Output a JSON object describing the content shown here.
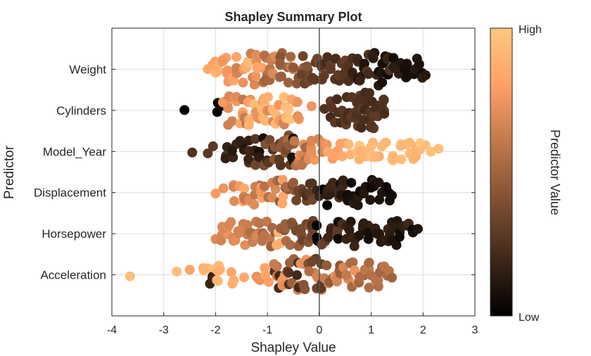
{
  "chart_data": {
    "type": "scatter",
    "title": "Shapley Summary Plot",
    "xlabel": "Shapley Value",
    "ylabel": "Predictor",
    "xlim": [
      -4,
      3
    ],
    "xticks": [
      -4,
      -3,
      -2,
      -1,
      0,
      1,
      2,
      3
    ],
    "grid": true,
    "zero_line": true,
    "colormap": "copper",
    "colorbar": {
      "label": "Predictor Value",
      "high_label": "High",
      "low_label": "Low",
      "position": "right"
    },
    "categories": [
      "Weight",
      "Cylinders",
      "Model_Year",
      "Displacement",
      "Horsepower",
      "Acceleration"
    ],
    "series": [
      {
        "predictor": "Weight",
        "points": [
          [
            -2.15,
            0.85
          ],
          [
            -2.05,
            0.8
          ],
          [
            -1.95,
            0.9
          ],
          [
            -1.85,
            0.75
          ],
          [
            -1.75,
            0.8
          ],
          [
            -1.65,
            0.85
          ],
          [
            -1.55,
            0.7
          ],
          [
            -1.45,
            0.75
          ],
          [
            -1.4,
            0.9
          ],
          [
            -1.3,
            0.65
          ],
          [
            -1.2,
            0.7
          ],
          [
            -1.15,
            0.8
          ],
          [
            -1.05,
            0.6
          ],
          [
            -1.0,
            0.55
          ],
          [
            -0.9,
            0.6
          ],
          [
            -0.85,
            0.7
          ],
          [
            -0.75,
            0.5
          ],
          [
            -0.7,
            0.45
          ],
          [
            -0.6,
            0.5
          ],
          [
            -0.55,
            0.6
          ],
          [
            -0.45,
            0.4
          ],
          [
            -0.35,
            0.45
          ],
          [
            -0.3,
            0.35
          ],
          [
            -0.2,
            0.4
          ],
          [
            -0.1,
            0.3
          ],
          [
            0.0,
            0.35
          ],
          [
            0.1,
            0.3
          ],
          [
            0.15,
            0.25
          ],
          [
            0.25,
            0.28
          ],
          [
            0.35,
            0.25
          ],
          [
            0.45,
            0.3
          ],
          [
            0.55,
            0.25
          ],
          [
            0.65,
            0.2
          ],
          [
            0.75,
            0.15
          ],
          [
            0.8,
            0.2
          ],
          [
            0.9,
            0.1
          ],
          [
            0.95,
            0.25
          ],
          [
            1.05,
            0.15
          ],
          [
            1.1,
            0.1
          ],
          [
            1.2,
            0.12
          ],
          [
            1.3,
            0.08
          ],
          [
            1.35,
            0.2
          ],
          [
            1.45,
            0.1
          ],
          [
            1.55,
            0.12
          ],
          [
            1.65,
            0.1
          ],
          [
            1.75,
            0.08
          ],
          [
            1.85,
            0.12
          ],
          [
            1.95,
            0.1
          ],
          [
            2.05,
            0.12
          ]
        ]
      },
      {
        "predictor": "Cylinders",
        "points": [
          [
            -2.6,
            0.0
          ],
          [
            -1.95,
            0.0
          ],
          [
            -1.85,
            0.02
          ],
          [
            -1.8,
            0.75
          ],
          [
            -1.7,
            0.7
          ],
          [
            -1.6,
            0.75
          ],
          [
            -1.5,
            0.8
          ],
          [
            -1.45,
            0.6
          ],
          [
            -1.35,
            0.75
          ],
          [
            -1.3,
            0.9
          ],
          [
            -1.2,
            0.7
          ],
          [
            -1.1,
            0.95
          ],
          [
            -1.05,
            0.8
          ],
          [
            -1.0,
            0.9
          ],
          [
            -0.95,
            0.7
          ],
          [
            -0.85,
            0.95
          ],
          [
            -0.8,
            0.75
          ],
          [
            -0.7,
            0.9
          ],
          [
            -0.65,
            0.7
          ],
          [
            -0.6,
            0.95
          ],
          [
            -0.5,
            0.8
          ],
          [
            -0.4,
            0.75
          ],
          [
            -0.15,
            0.75
          ],
          [
            0.1,
            0.25
          ],
          [
            0.25,
            0.25
          ],
          [
            0.35,
            0.25
          ],
          [
            0.45,
            0.25
          ],
          [
            0.5,
            0.25
          ],
          [
            0.6,
            0.25
          ],
          [
            0.65,
            0.25
          ],
          [
            0.7,
            0.25
          ],
          [
            0.75,
            0.25
          ],
          [
            0.8,
            0.25
          ],
          [
            0.85,
            0.25
          ],
          [
            0.9,
            0.25
          ],
          [
            0.95,
            0.25
          ],
          [
            1.0,
            0.25
          ],
          [
            1.05,
            0.25
          ],
          [
            1.1,
            0.25
          ],
          [
            1.2,
            0.25
          ],
          [
            1.25,
            0.25
          ]
        ]
      },
      {
        "predictor": "Model_Year",
        "points": [
          [
            -2.45,
            0.25
          ],
          [
            -2.15,
            0.28
          ],
          [
            -2.05,
            0.28
          ],
          [
            -1.8,
            0.2
          ],
          [
            -1.65,
            0.15
          ],
          [
            -1.5,
            0.12
          ],
          [
            -1.4,
            0.2
          ],
          [
            -1.3,
            0.15
          ],
          [
            -1.2,
            0.3
          ],
          [
            -1.1,
            0.1
          ],
          [
            -1.05,
            0.35
          ],
          [
            -0.95,
            0.25
          ],
          [
            -0.9,
            0.4
          ],
          [
            -0.8,
            0.3
          ],
          [
            -0.7,
            0.45
          ],
          [
            -0.6,
            0.35
          ],
          [
            -0.55,
            0.5
          ],
          [
            -0.5,
            0.05
          ],
          [
            -0.45,
            0.6
          ],
          [
            -0.35,
            0.7
          ],
          [
            -0.3,
            0.55
          ],
          [
            -0.2,
            0.7
          ],
          [
            -0.1,
            0.75
          ],
          [
            0.0,
            0.7
          ],
          [
            0.1,
            0.75
          ],
          [
            0.2,
            0.8
          ],
          [
            0.3,
            0.8
          ],
          [
            0.45,
            0.85
          ],
          [
            0.6,
            0.9
          ],
          [
            0.75,
            0.95
          ],
          [
            0.85,
            0.88
          ],
          [
            1.0,
            0.92
          ],
          [
            1.1,
            0.9
          ],
          [
            1.25,
            0.95
          ],
          [
            1.4,
            0.92
          ],
          [
            1.55,
            0.9
          ],
          [
            1.7,
            0.95
          ],
          [
            1.85,
            0.92
          ],
          [
            2.0,
            0.95
          ],
          [
            2.15,
            0.97
          ],
          [
            2.3,
            0.95
          ]
        ]
      },
      {
        "predictor": "Displacement",
        "points": [
          [
            -2.0,
            0.78
          ],
          [
            -1.85,
            0.75
          ],
          [
            -1.6,
            0.7
          ],
          [
            -1.5,
            0.8
          ],
          [
            -1.4,
            0.65
          ],
          [
            -1.3,
            0.75
          ],
          [
            -1.2,
            0.6
          ],
          [
            -1.1,
            0.8
          ],
          [
            -1.0,
            0.55
          ],
          [
            -0.9,
            0.7
          ],
          [
            -0.8,
            0.5
          ],
          [
            -0.7,
            0.8
          ],
          [
            -0.6,
            0.5
          ],
          [
            -0.5,
            0.45
          ],
          [
            -0.4,
            0.35
          ],
          [
            -0.3,
            0.3
          ],
          [
            -0.2,
            0.25
          ],
          [
            -0.1,
            0.3
          ],
          [
            0.0,
            0.2
          ],
          [
            0.1,
            0.0
          ],
          [
            0.15,
            0.18
          ],
          [
            0.25,
            0.15
          ],
          [
            0.35,
            0.2
          ],
          [
            0.45,
            0.1
          ],
          [
            0.5,
            0.15
          ],
          [
            0.6,
            0.05
          ],
          [
            0.7,
            0.12
          ],
          [
            0.8,
            0.08
          ],
          [
            0.9,
            0.1
          ],
          [
            1.0,
            0.06
          ],
          [
            1.1,
            0.1
          ],
          [
            1.2,
            0.05
          ],
          [
            1.3,
            0.08
          ],
          [
            1.4,
            0.06
          ]
        ]
      },
      {
        "predictor": "Horsepower",
        "points": [
          [
            -2.0,
            0.7
          ],
          [
            -1.9,
            0.65
          ],
          [
            -1.8,
            0.72
          ],
          [
            -1.7,
            0.65
          ],
          [
            -1.6,
            0.7
          ],
          [
            -1.5,
            0.62
          ],
          [
            -1.4,
            0.68
          ],
          [
            -1.3,
            0.6
          ],
          [
            -1.2,
            0.65
          ],
          [
            -1.1,
            0.55
          ],
          [
            -1.0,
            0.6
          ],
          [
            -0.9,
            0.5
          ],
          [
            -0.8,
            0.85
          ],
          [
            -0.7,
            0.45
          ],
          [
            -0.6,
            0.5
          ],
          [
            -0.5,
            0.4
          ],
          [
            -0.4,
            0.45
          ],
          [
            -0.3,
            0.35
          ],
          [
            -0.2,
            0.4
          ],
          [
            -0.1,
            0.3
          ],
          [
            0.0,
            0.02
          ],
          [
            0.1,
            0.3
          ],
          [
            0.2,
            0.2
          ],
          [
            0.3,
            0.25
          ],
          [
            0.4,
            0.05
          ],
          [
            0.5,
            0.2
          ],
          [
            0.6,
            0.15
          ],
          [
            0.7,
            0.18
          ],
          [
            0.8,
            0.12
          ],
          [
            0.9,
            0.15
          ],
          [
            1.0,
            0.1
          ],
          [
            1.1,
            0.12
          ],
          [
            1.2,
            0.1
          ],
          [
            1.3,
            0.15
          ],
          [
            1.4,
            0.1
          ],
          [
            1.5,
            0.12
          ],
          [
            1.6,
            0.1
          ],
          [
            1.7,
            0.15
          ],
          [
            1.8,
            0.08
          ],
          [
            1.9,
            0.1
          ]
        ]
      },
      {
        "predictor": "Acceleration",
        "points": [
          [
            -3.65,
            0.95
          ],
          [
            -2.75,
            0.95
          ],
          [
            -2.5,
            0.82
          ],
          [
            -2.2,
            0.9
          ],
          [
            -2.05,
            0.2
          ],
          [
            -1.95,
            0.92
          ],
          [
            -1.9,
            0.9
          ],
          [
            -1.7,
            0.85
          ],
          [
            -1.45,
            0.85
          ],
          [
            -1.15,
            0.75
          ],
          [
            -1.0,
            0.8
          ],
          [
            -0.9,
            0.3
          ],
          [
            -0.85,
            0.6
          ],
          [
            -0.75,
            0.2
          ],
          [
            -0.7,
            0.75
          ],
          [
            -0.6,
            0.3
          ],
          [
            -0.55,
            0.5
          ],
          [
            -0.45,
            0.65
          ],
          [
            -0.4,
            0.25
          ],
          [
            -0.3,
            0.7
          ],
          [
            -0.25,
            0.4
          ],
          [
            -0.15,
            0.6
          ],
          [
            -0.1,
            0.35
          ],
          [
            0.0,
            0.7
          ],
          [
            0.05,
            0.3
          ],
          [
            0.15,
            0.65
          ],
          [
            0.2,
            0.5
          ],
          [
            0.3,
            0.7
          ],
          [
            0.4,
            0.45
          ],
          [
            0.5,
            0.65
          ],
          [
            0.6,
            0.55
          ],
          [
            0.7,
            0.7
          ],
          [
            0.8,
            0.5
          ],
          [
            0.9,
            0.6
          ],
          [
            1.0,
            0.55
          ],
          [
            1.1,
            0.6
          ],
          [
            1.2,
            0.5
          ],
          [
            1.3,
            0.55
          ],
          [
            1.4,
            0.5
          ]
        ]
      }
    ]
  }
}
